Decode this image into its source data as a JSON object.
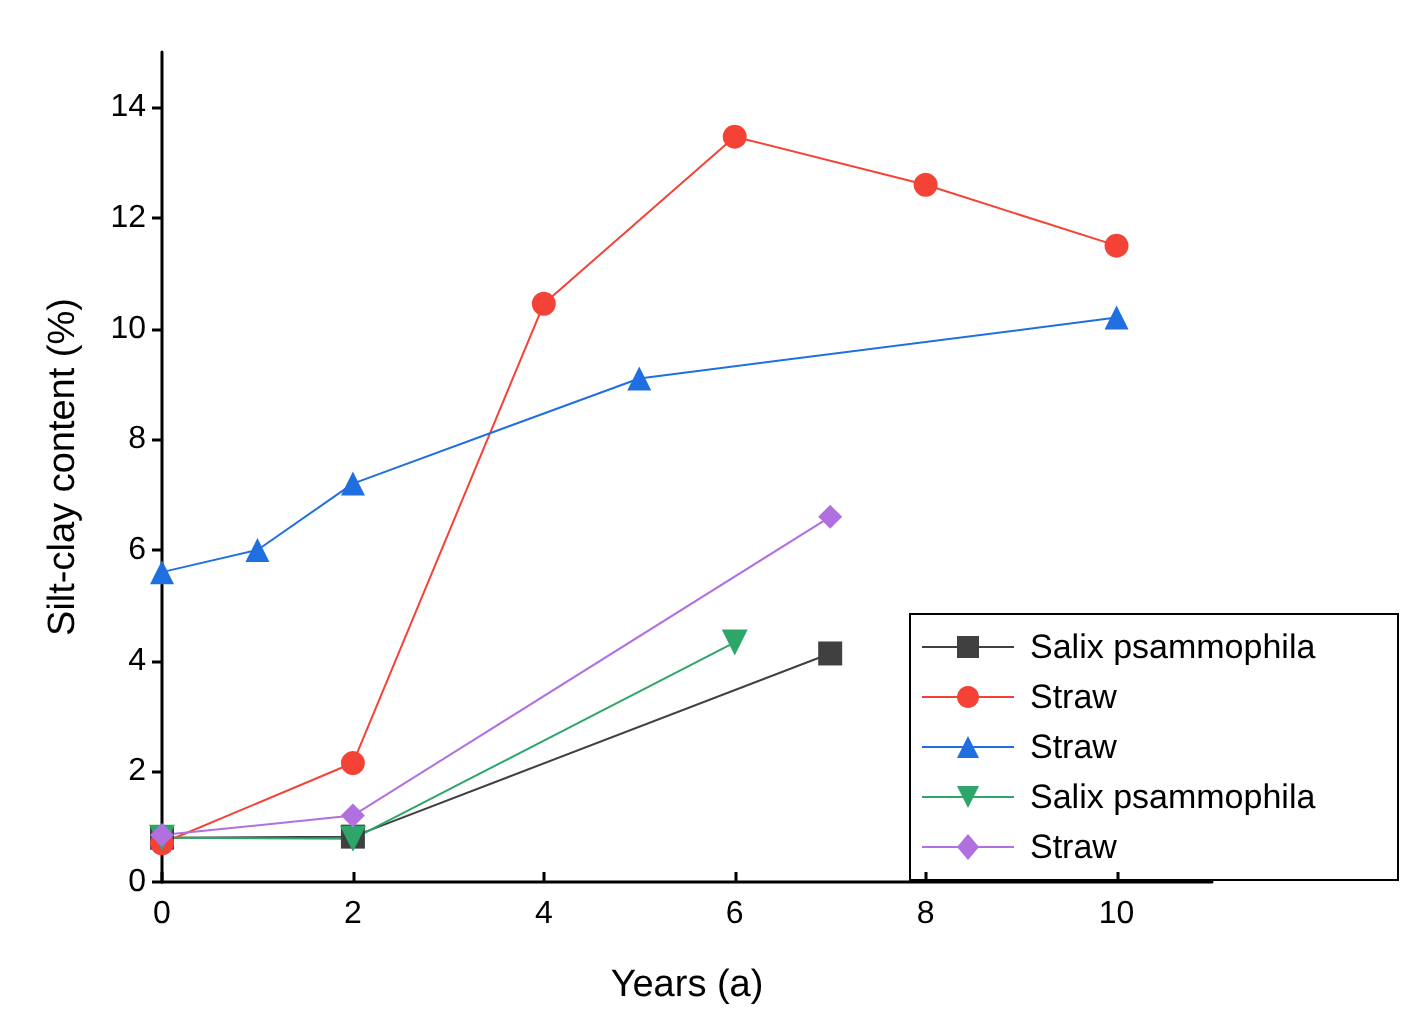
{
  "chart_data": {
    "type": "line",
    "xlabel": "Years (a)",
    "ylabel": "Silt-clay content (%)",
    "xlim": [
      0,
      11
    ],
    "xticks": [
      0,
      2,
      4,
      6,
      8,
      10
    ],
    "ylim": [
      0,
      15
    ],
    "yticks": [
      0,
      2,
      4,
      6,
      8,
      10,
      12,
      14
    ],
    "grid": false,
    "legend": "bottom right",
    "series": [
      {
        "name": "Salix psammophila",
        "color": "#404040",
        "marker": "square",
        "x": [
          0,
          2,
          7
        ],
        "values": [
          0.8,
          0.82,
          4.13
        ]
      },
      {
        "name": "Straw",
        "color": "#f44336",
        "marker": "circle",
        "x": [
          0,
          2,
          4,
          6,
          8,
          10
        ],
        "values": [
          0.7,
          2.15,
          10.45,
          13.47,
          12.6,
          11.5
        ]
      },
      {
        "name": "Straw",
        "color": "#1f6fe0",
        "marker": "triangle",
        "x": [
          0,
          1,
          2,
          5,
          10
        ],
        "values": [
          5.6,
          6.0,
          7.2,
          9.1,
          10.2
        ]
      },
      {
        "name": "Salix psammophila",
        "color": "#2ea66a",
        "marker": "triangle",
        "x": [
          0,
          2,
          6
        ],
        "values": [
          0.8,
          0.78,
          4.33
        ]
      },
      {
        "name": "Straw",
        "color": "#b070e0",
        "marker": "diamond",
        "x": [
          0,
          2,
          7
        ],
        "values": [
          0.85,
          1.2,
          6.6
        ]
      }
    ]
  }
}
